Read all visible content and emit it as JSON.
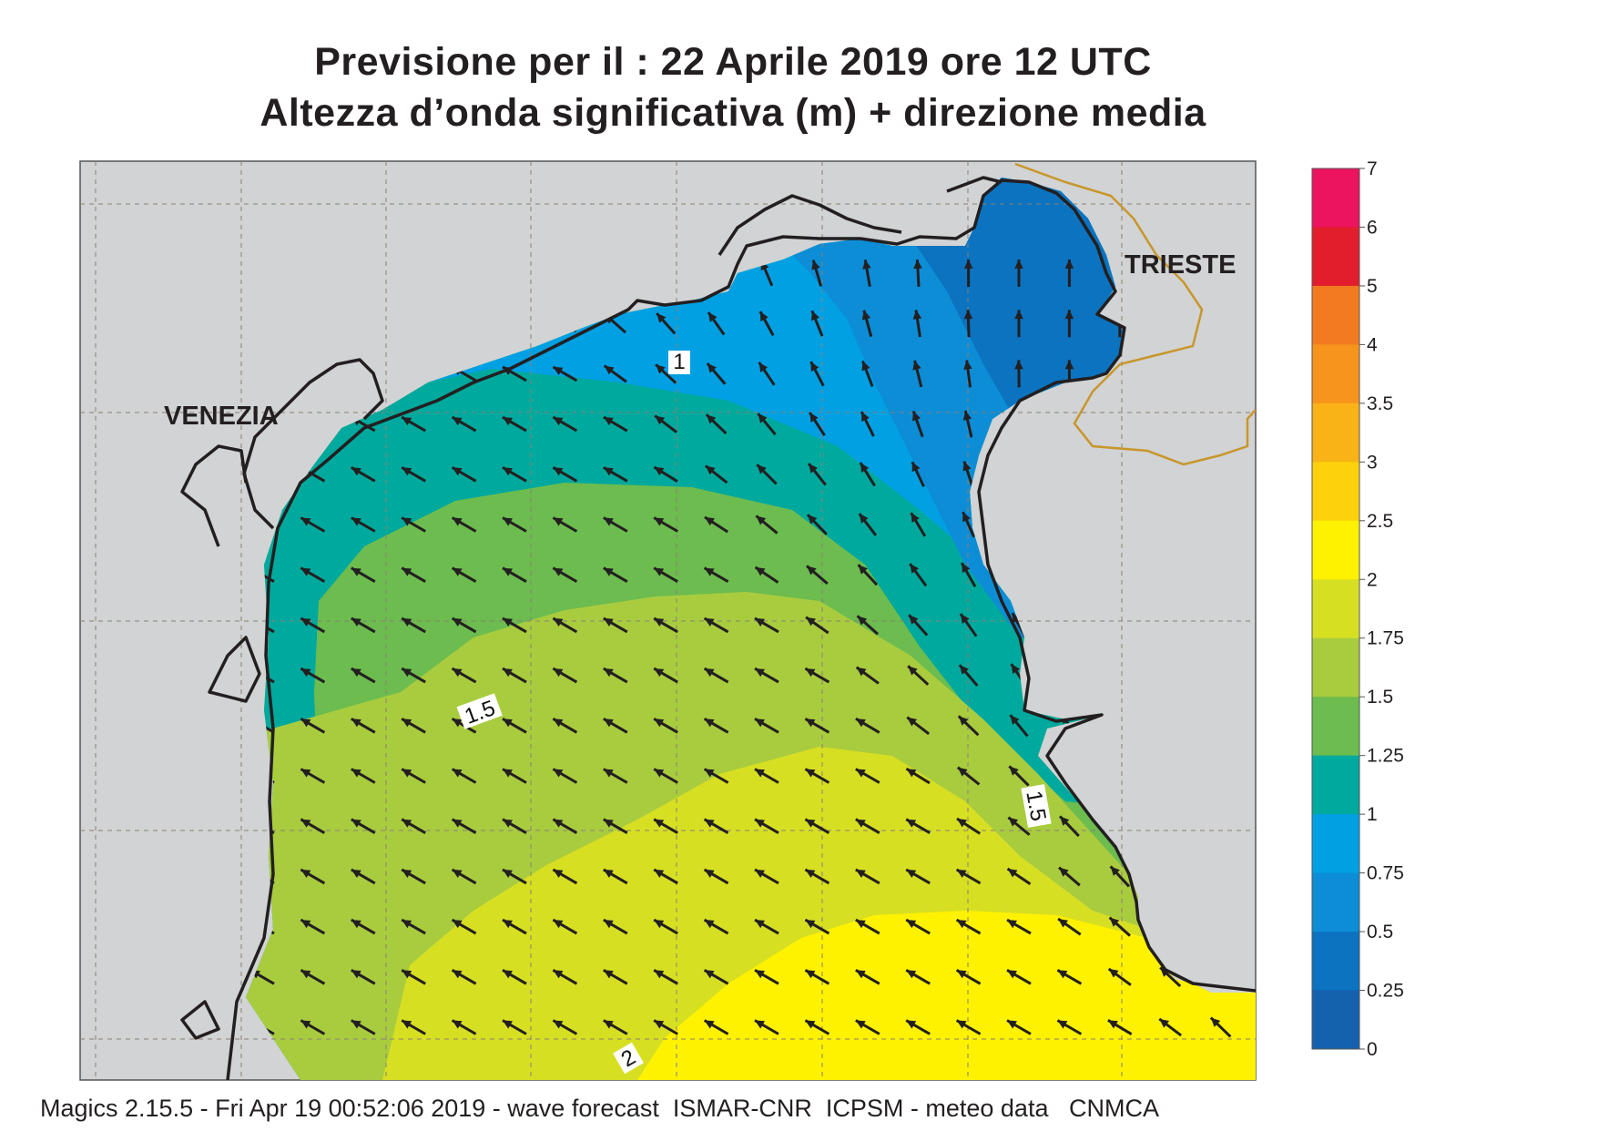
{
  "title": {
    "line1": "Previsione per il  :  22   Aprile  2019   ore 12 UTC",
    "line2": "Altezza d’onda significativa (m) + direzione media"
  },
  "cities": {
    "venezia": "VENEZIA",
    "trieste": "TRIESTE"
  },
  "contour_labels": {
    "c1": "1",
    "c15a": "1.5",
    "c15b": "1.5",
    "c2": "2"
  },
  "legend": {
    "ticks": [
      "7",
      "6",
      "5",
      "4",
      "3.5",
      "3",
      "2.5",
      "2",
      "1.75",
      "1.5",
      "1.25",
      "1",
      "0.75",
      "0.5",
      "0.25",
      "0"
    ],
    "colors": [
      "#ec135f",
      "#e31e2c",
      "#f27a21",
      "#f7941d",
      "#f9b317",
      "#fdd20d",
      "#fff200",
      "#d7df23",
      "#a9cc3f",
      "#6cbc4f",
      "#00a99d",
      "#00a0e3",
      "#0d8dd6",
      "#0b73c0",
      "#1461ad"
    ]
  },
  "footer": "Magics 2.15.5 - Fri Apr 19 00:52:06 2019 - wave forecast  ISMAR-CNR  ICPSM - meteo data   CNMCA",
  "colors": {
    "land": "#d1d3d4",
    "border": "#c8962b",
    "arrow": "#231f20"
  }
}
